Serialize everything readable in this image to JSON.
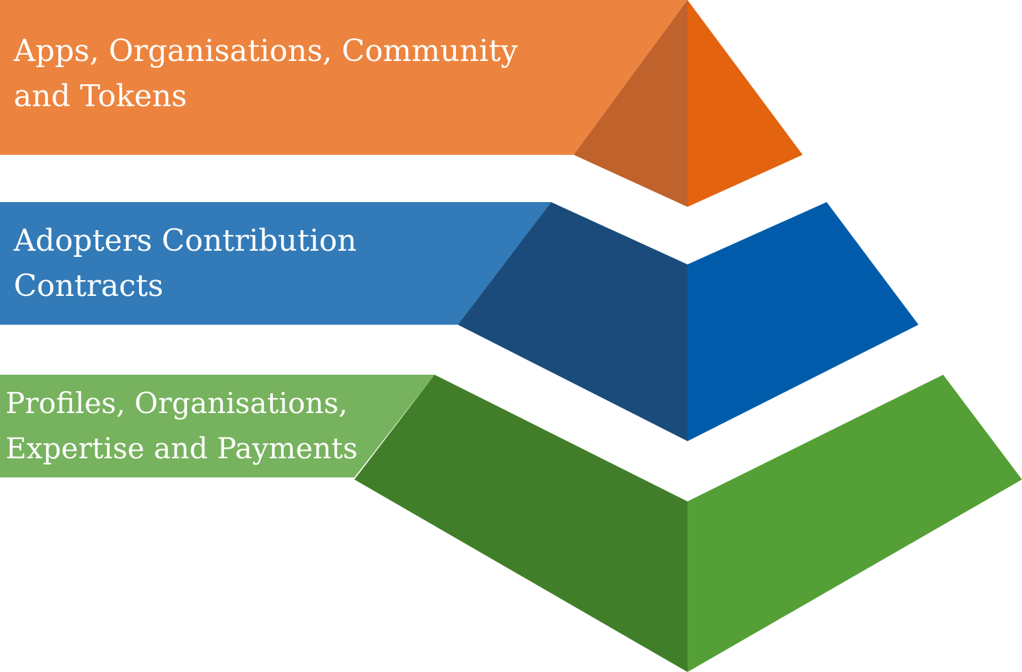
{
  "layers": [
    {
      "id": "top",
      "label": "Apps, Organisations, Community\nand Tokens",
      "colors": {
        "band": "#EC8440",
        "face_left": "#BF622C",
        "face_right": "#E3630F"
      }
    },
    {
      "id": "middle",
      "label": "Adopters Contribution\nContracts",
      "colors": {
        "band": "#337BB8",
        "face_left": "#1B4B7B",
        "face_right": "#005CAA"
      }
    },
    {
      "id": "bottom",
      "label": "Profiles, Organisations,\nExpertise and Payments",
      "colors": {
        "band": "#77B25E",
        "face_left": "#417E29",
        "face_right": "#54A036"
      }
    }
  ]
}
